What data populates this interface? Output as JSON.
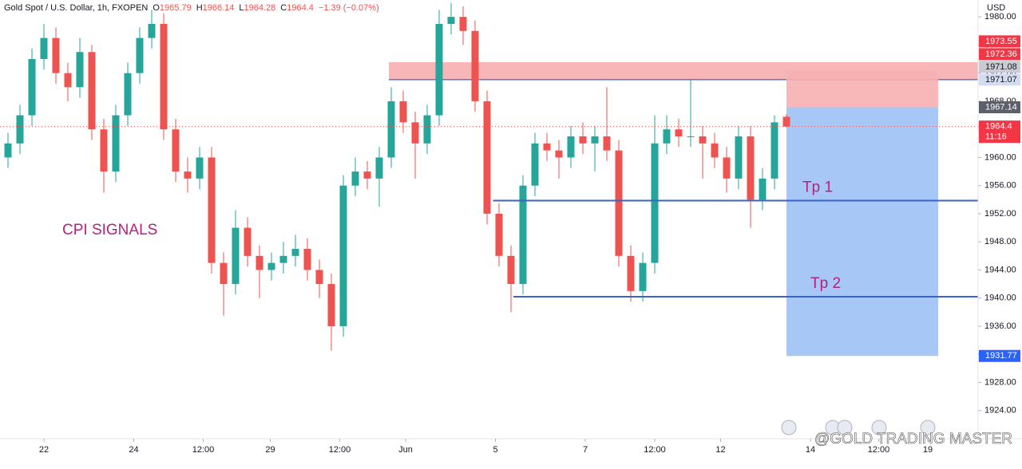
{
  "chart_data": {
    "type": "candlestick",
    "title": "Gold Spot / U.S. Dollar, 1h, FXOPEN",
    "ohlc_header": [
      {
        "label": "O",
        "value": 1965.79
      },
      {
        "label": "H",
        "value": 1966.14
      },
      {
        "label": "L",
        "value": 1964.28
      },
      {
        "label": "C",
        "value": 1964.4
      }
    ],
    "change_text": "−1.39 (−0.07%)",
    "currency": "USD",
    "annotation": "CPI SIGNALS",
    "watermark": "@GOLD TRADING MASTER",
    "up_color": "#26a69a",
    "down_color": "#ef5350",
    "open": [
      1960,
      1962,
      1966,
      1974,
      1977,
      1972,
      1970,
      1975,
      1964,
      1958,
      1966,
      1972,
      1977,
      1979,
      1964,
      1958,
      1957,
      1960,
      1945,
      1942,
      1950,
      1946,
      1944,
      1945,
      1946,
      1947,
      1944,
      1942,
      1936,
      1956,
      1958,
      1957,
      1960,
      1968,
      1965,
      1962,
      1966,
      1979,
      1980,
      1978,
      1968,
      1952,
      1946,
      1942,
      1956,
      1962,
      1961,
      1960,
      1963,
      1962,
      1963,
      1961,
      1946,
      1941,
      1945,
      1962,
      1964,
      1963,
      1963,
      1962,
      1960,
      1957,
      1963,
      1954,
      1957,
      1965.79
    ],
    "high": [
      1963.5,
      1967.5,
      1975.5,
      1979,
      1978.5,
      1973.5,
      1977,
      1976,
      1965.5,
      1967.5,
      1973.5,
      1978.5,
      1981,
      1980.5,
      1965.5,
      1960,
      1961.5,
      1961.5,
      1946.5,
      1952.5,
      1951.5,
      1947.5,
      1946.5,
      1948,
      1949,
      1948.5,
      1945.5,
      1943.5,
      1957.5,
      1960,
      1959.5,
      1961.5,
      1970,
      1969.5,
      1966.5,
      1967.5,
      1981,
      1982,
      1981.5,
      1979.5,
      1969.5,
      1953.5,
      1947.5,
      1957.5,
      1963.5,
      1963.5,
      1962.5,
      1964.5,
      1965,
      1964.5,
      1970,
      1962.5,
      1947.5,
      1946.5,
      1966,
      1966,
      1965.5,
      1971,
      1964.5,
      1963.5,
      1961.5,
      1964.5,
      1964.5,
      1958.5,
      1966,
      1966.14
    ],
    "low": [
      1958.5,
      1960.5,
      1964.5,
      1972.5,
      1970.5,
      1968,
      1968.5,
      1962.5,
      1955,
      1956.5,
      1964.5,
      1970.5,
      1975.5,
      1962.5,
      1956.5,
      1955,
      1955.5,
      1943.5,
      1937.5,
      1940.5,
      1944.5,
      1940,
      1942.5,
      1943.5,
      1944.5,
      1942.5,
      1940,
      1932.5,
      1934.5,
      1954.5,
      1955.5,
      1953,
      1958.5,
      1963.5,
      1957,
      1960.5,
      1964.5,
      1977.5,
      1976,
      1966.5,
      1950.5,
      1944.5,
      1938,
      1940.5,
      1954.5,
      1959.5,
      1957,
      1958.5,
      1960.5,
      1958,
      1959.5,
      1944.5,
      1939.5,
      1939.5,
      1943.5,
      1960.5,
      1961.5,
      1961.5,
      1957,
      1958.5,
      1955,
      1955.5,
      1950,
      1952.5,
      1955.5,
      1964.28
    ],
    "close": [
      1962,
      1966,
      1974,
      1977,
      1972,
      1970,
      1975,
      1964,
      1958,
      1966,
      1972,
      1977,
      1979,
      1964,
      1958,
      1957,
      1960,
      1945,
      1942,
      1950,
      1946,
      1944,
      1945,
      1946,
      1947,
      1944,
      1942,
      1936,
      1956,
      1958,
      1957,
      1960,
      1968,
      1965,
      1962,
      1966,
      1979,
      1980,
      1978,
      1968,
      1952,
      1946,
      1942,
      1956,
      1962,
      1961,
      1960,
      1963,
      1962,
      1963,
      1961,
      1946,
      1941,
      1945,
      1962,
      1964,
      1963,
      1963,
      1962,
      1960,
      1957,
      1963,
      1954,
      1957,
      1965,
      1964.4
    ],
    "xlim": [
      -0.667,
      81
    ],
    "xticks": [
      {
        "value": 3,
        "label": "22"
      },
      {
        "value": 10.5,
        "label": "24"
      },
      {
        "value": 16.3,
        "label": "12:00"
      },
      {
        "value": 21.9,
        "label": "29"
      },
      {
        "value": 27.7,
        "label": "12:00"
      },
      {
        "value": 33.2,
        "label": "Jun"
      },
      {
        "value": 40.7,
        "label": "5"
      },
      {
        "value": 48.2,
        "label": "7"
      },
      {
        "value": 54,
        "label": "12:00"
      },
      {
        "value": 59.5,
        "label": "12"
      },
      {
        "value": 67,
        "label": "14"
      },
      {
        "value": 72.7,
        "label": "12:00"
      },
      {
        "value": 76.8,
        "label": "19"
      }
    ],
    "ylim": [
      1920,
      1982.4
    ],
    "yticks": [
      {
        "value": 1924,
        "label": "1924.00"
      },
      {
        "value": 1928,
        "label": "1928.00"
      },
      {
        "value": 1932,
        "label": "1932.00"
      },
      {
        "value": 1936,
        "label": "1936.00"
      },
      {
        "value": 1940,
        "label": "1940.00"
      },
      {
        "value": 1944,
        "label": "1944.00"
      },
      {
        "value": 1948,
        "label": "1948.00"
      },
      {
        "value": 1952,
        "label": "1952.00"
      },
      {
        "value": 1956,
        "label": "1956.00"
      },
      {
        "value": 1960,
        "label": "1960.00"
      },
      {
        "value": 1964,
        "label": "1964.00"
      },
      {
        "value": 1968,
        "label": "1968.00"
      },
      {
        "value": 1972,
        "label": "1972.00"
      },
      {
        "value": 1976,
        "label": "1976.00"
      },
      {
        "value": 1980,
        "label": "1980.00"
      }
    ],
    "grid": false,
    "zone": {
      "bottom": 1971.07,
      "top": 1973.55,
      "start": 31.8,
      "color": "#f7a9ab"
    },
    "levels": [
      {
        "label": "Tp 1",
        "value": 1953.86,
        "start": 40.5
      },
      {
        "label": "Tp 2",
        "value": 1940.2,
        "start": 42.2
      }
    ],
    "level_color": "#3a62c9",
    "position": {
      "start": 65,
      "end": 77.67,
      "stop": 1972.36,
      "entry": 1967.14,
      "target": 1931.77
    },
    "price_labels": [
      {
        "value": 1973.55,
        "color": "#f23645",
        "text_color": "#ffffff"
      },
      {
        "value": 1972.36,
        "color": "#f23645",
        "text_color": "#ffffff"
      },
      {
        "value": 1971.08,
        "color": "#c9cbd1",
        "text_color": "#131722"
      },
      {
        "value": 1971.07,
        "color": "#d4dcf2",
        "text_color": "#131722"
      },
      {
        "value": 1967.14,
        "color": "#5d606b",
        "text_color": "#ffffff"
      },
      {
        "value": 1964.4,
        "color": "#f23645",
        "text_color": "#ffffff",
        "countdown": "11:16"
      },
      {
        "value": 1931.77,
        "color": "#2962ff",
        "text_color": "#ffffff"
      }
    ]
  }
}
